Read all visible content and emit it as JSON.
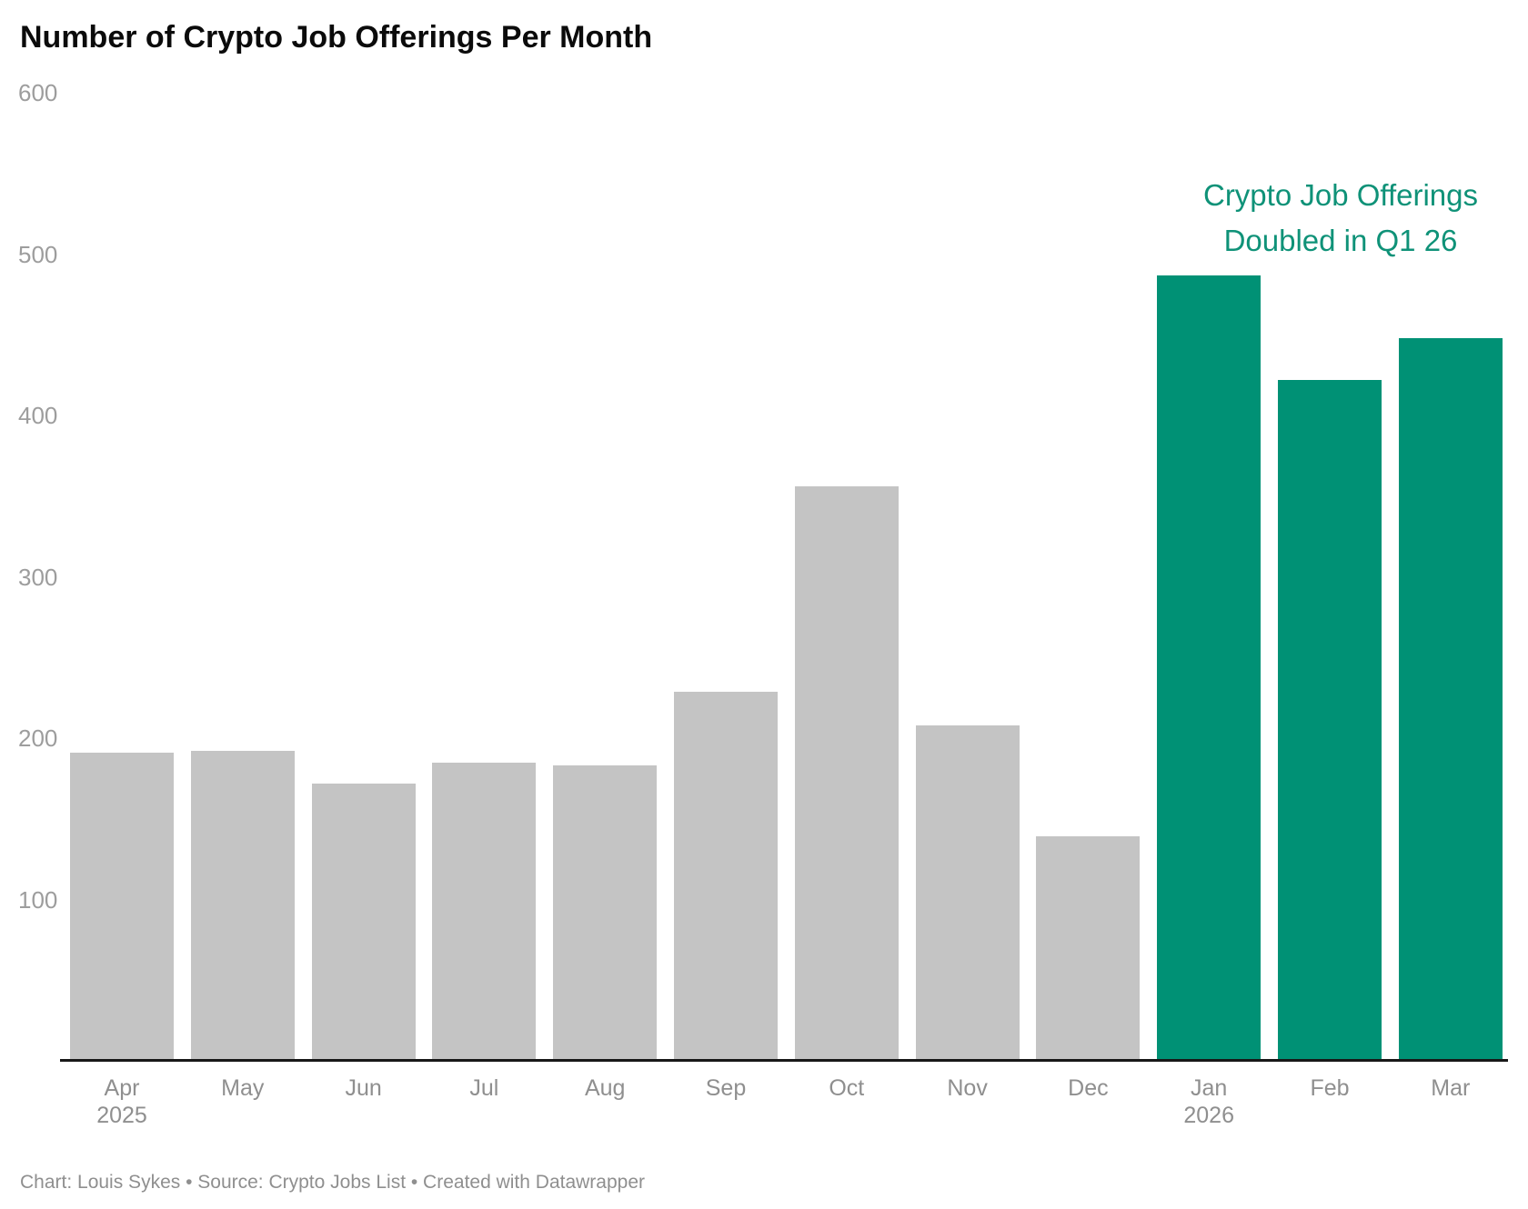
{
  "header": {
    "title": "Number of Crypto Job Offerings Per Month"
  },
  "annotation": {
    "line1": "Crypto Job Offerings",
    "line2": "Doubled in Q1 26",
    "color": "#0f9278"
  },
  "footer": {
    "text": "Chart: Louis Sykes • Source: Crypto Jobs List • Created with Datawrapper"
  },
  "colors": {
    "bar_default": "#c4c4c4",
    "bar_highlight": "#009175",
    "axis_text": "#9d9d9d",
    "x_axis_text": "#8f8f8f",
    "axis_line": "#181818",
    "title_text": "#0b0b0b",
    "footer_text": "#8f8f8f",
    "background": "#ffffff"
  },
  "chart_data": {
    "type": "bar",
    "title": "Number of Crypto Job Offerings Per Month",
    "categories": [
      "Apr",
      "May",
      "Jun",
      "Jul",
      "Aug",
      "Sep",
      "Oct",
      "Nov",
      "Dec",
      "Jan",
      "Feb",
      "Mar"
    ],
    "year_sublabels": [
      "2025",
      "",
      "",
      "",
      "",
      "",
      "",
      "",
      "",
      "2026",
      "",
      ""
    ],
    "values": [
      191,
      192,
      172,
      185,
      183,
      229,
      356,
      208,
      139,
      487,
      422,
      448
    ],
    "bar_colors": [
      "#c4c4c4",
      "#c4c4c4",
      "#c4c4c4",
      "#c4c4c4",
      "#c4c4c4",
      "#c4c4c4",
      "#c4c4c4",
      "#c4c4c4",
      "#c4c4c4",
      "#009175",
      "#009175",
      "#009175"
    ],
    "highlighted_categories": [
      "Jan",
      "Feb",
      "Mar"
    ],
    "xlabel": "",
    "ylabel": "",
    "ylim": [
      0,
      600
    ],
    "yticks": [
      100,
      200,
      300,
      400,
      500,
      600
    ],
    "grid": false,
    "legend": "none",
    "annotation": "Crypto Job Offerings Doubled in Q1 26"
  }
}
